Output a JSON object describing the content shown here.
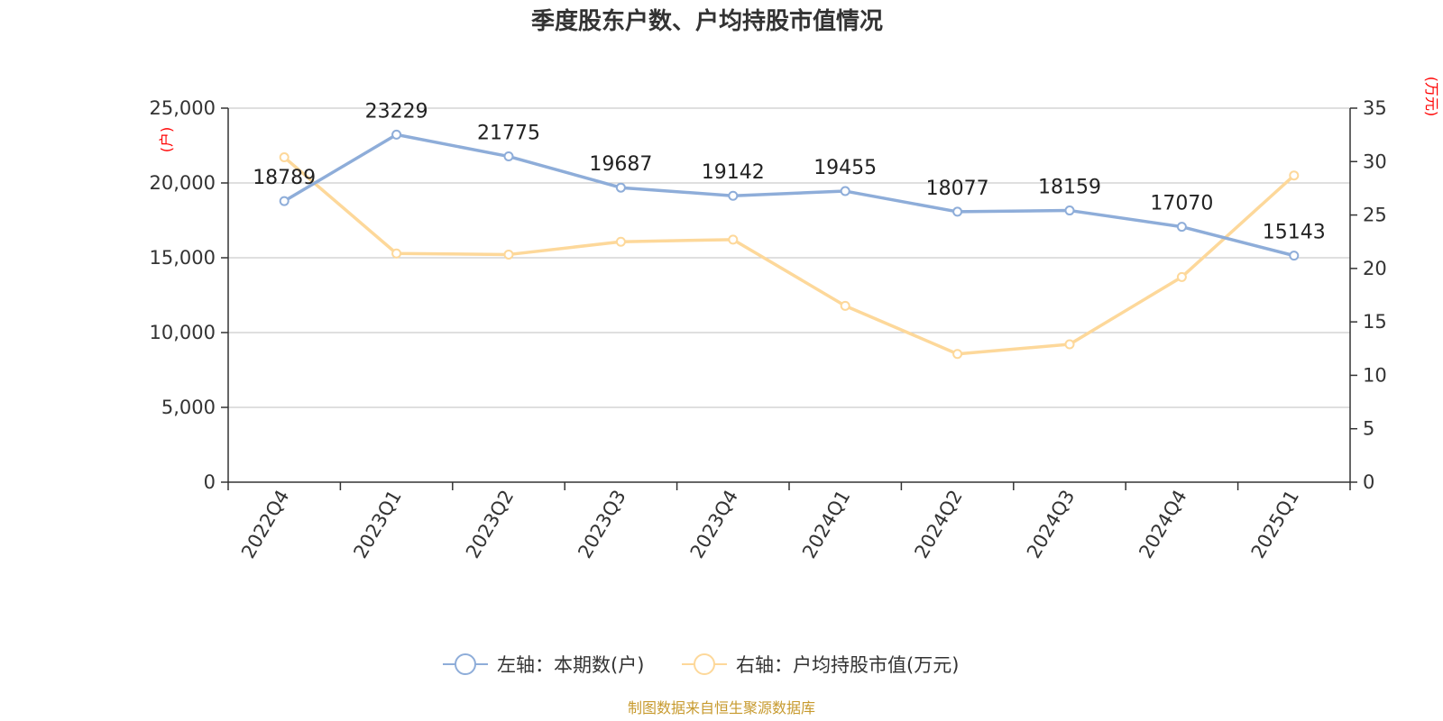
{
  "chart_data": {
    "type": "line",
    "title": "季度股东户数、户均持股市值情况",
    "categories": [
      "2022Q4",
      "2023Q1",
      "2023Q2",
      "2023Q3",
      "2023Q4",
      "2024Q1",
      "2024Q2",
      "2024Q3",
      "2024Q4",
      "2025Q1"
    ],
    "left_axis": {
      "unit": "(户)",
      "ylim": [
        0,
        25000
      ],
      "ticks": [
        "0",
        "5,000",
        "10,000",
        "15,000",
        "20,000",
        "25,000"
      ]
    },
    "right_axis": {
      "unit": "(万元)",
      "ylim": [
        0,
        35
      ],
      "ticks": [
        "0",
        "5",
        "10",
        "15",
        "20",
        "25",
        "30",
        "35"
      ]
    },
    "series": [
      {
        "name": "左轴：本期数(户)",
        "axis": "left",
        "color": "#8eadd9",
        "values": [
          18789,
          23229,
          21775,
          19687,
          19142,
          19455,
          18077,
          18159,
          17070,
          15143
        ],
        "labels": [
          "18789",
          "23229",
          "21775",
          "19687",
          "19142",
          "19455",
          "18077",
          "18159",
          "17070",
          "15143"
        ]
      },
      {
        "name": "右轴：户均持股市值(万元)",
        "axis": "right",
        "color": "#fdd89a",
        "values": [
          30.4,
          21.4,
          21.3,
          22.5,
          22.7,
          16.5,
          12.0,
          12.9,
          19.2,
          28.7
        ]
      }
    ],
    "grid": true,
    "legend_position": "bottom"
  },
  "source": "制图数据来自恒生聚源数据库"
}
